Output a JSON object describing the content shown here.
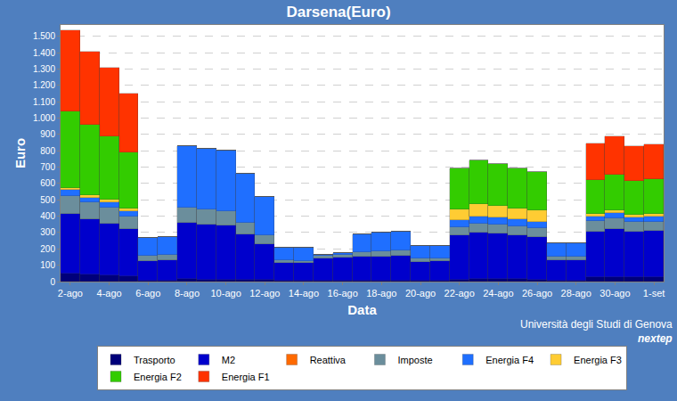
{
  "chart_data": {
    "type": "bar",
    "title": "Darsena(Euro)",
    "x_label": "Data",
    "y_label": "Euro",
    "stacked": true,
    "grid": true,
    "legend": "bottom",
    "annotations": [
      "Università degli Studi di Genova",
      "nextep"
    ],
    "categories": [
      "2-ago",
      null,
      "4-ago",
      null,
      "6-ago",
      null,
      "8-ago",
      null,
      "10-ago",
      null,
      "12-ago",
      null,
      "14-ago",
      null,
      "16-ago",
      null,
      "18-ago",
      null,
      "20-ago",
      null,
      "22-ago",
      null,
      "24-ago",
      null,
      "26-ago",
      null,
      "28-ago",
      null,
      "30-ago",
      null,
      "1-set"
    ],
    "ylim": [
      0,
      1570
    ],
    "yticks": [
      0,
      100,
      200,
      300,
      400,
      500,
      600,
      700,
      800,
      900,
      {
        "value": 1000,
        "label": "1.000"
      },
      {
        "value": 1100,
        "label": "1.100"
      },
      {
        "value": 1200,
        "label": "1.200"
      },
      {
        "value": 1300,
        "label": "1.300"
      },
      {
        "value": 1400,
        "label": "1.400"
      },
      {
        "value": 1500,
        "label": "1.500"
      }
    ],
    "series": [
      {
        "name": "Trasporto",
        "color": "#00007a",
        "values": [
          50,
          45,
          40,
          35,
          5,
          5,
          15,
          10,
          10,
          10,
          10,
          5,
          5,
          5,
          5,
          5,
          5,
          5,
          5,
          5,
          10,
          15,
          15,
          15,
          10,
          5,
          5,
          25,
          25,
          25,
          25
        ]
      },
      {
        "name": "M2",
        "color": "#0000cc",
        "values": [
          365,
          335,
          315,
          285,
          120,
          125,
          345,
          340,
          335,
          280,
          220,
          110,
          110,
          135,
          140,
          150,
          150,
          155,
          115,
          120,
          275,
          285,
          280,
          270,
          265,
          125,
          125,
          280,
          295,
          280,
          285
        ]
      },
      {
        "name": "Reattiva",
        "color": "#ff6a00",
        "values": [
          0,
          0,
          0,
          0,
          0,
          0,
          0,
          0,
          0,
          0,
          0,
          0,
          0,
          0,
          0,
          0,
          0,
          0,
          0,
          0,
          0,
          0,
          0,
          0,
          0,
          0,
          0,
          0,
          0,
          0,
          0
        ]
      },
      {
        "name": "Imposte",
        "color": "#6b8e9c",
        "values": [
          110,
          105,
          100,
          80,
          35,
          35,
          90,
          90,
          85,
          70,
          55,
          15,
          10,
          20,
          20,
          25,
          30,
          30,
          20,
          15,
          50,
          55,
          55,
          55,
          50,
          20,
          20,
          65,
          65,
          60,
          55
        ]
      },
      {
        "name": "Energia F4",
        "color": "#1f6fff",
        "values": [
          35,
          30,
          30,
          30,
          105,
          105,
          380,
          370,
          370,
          300,
          235,
          75,
          80,
          5,
          10,
          110,
          115,
          115,
          80,
          80,
          40,
          45,
          45,
          40,
          40,
          85,
          85,
          30,
          35,
          30,
          35
        ]
      },
      {
        "name": "Energia F3",
        "color": "#ffcc33",
        "values": [
          15,
          15,
          15,
          15,
          0,
          0,
          0,
          0,
          0,
          0,
          0,
          0,
          0,
          0,
          0,
          0,
          0,
          0,
          0,
          0,
          65,
          75,
          70,
          65,
          70,
          0,
          0,
          15,
          15,
          15,
          15
        ]
      },
      {
        "name": "Energia F2",
        "color": "#33cc00",
        "values": [
          465,
          430,
          390,
          345,
          0,
          0,
          0,
          0,
          0,
          0,
          0,
          0,
          0,
          0,
          0,
          0,
          0,
          0,
          0,
          0,
          250,
          265,
          255,
          250,
          235,
          0,
          0,
          205,
          220,
          205,
          210
        ]
      },
      {
        "name": "Energia F1",
        "color": "#ff3300",
        "values": [
          495,
          445,
          420,
          360,
          0,
          0,
          0,
          0,
          0,
          0,
          0,
          0,
          0,
          0,
          0,
          0,
          0,
          0,
          0,
          0,
          0,
          0,
          0,
          0,
          0,
          0,
          0,
          225,
          235,
          215,
          215
        ]
      }
    ]
  }
}
